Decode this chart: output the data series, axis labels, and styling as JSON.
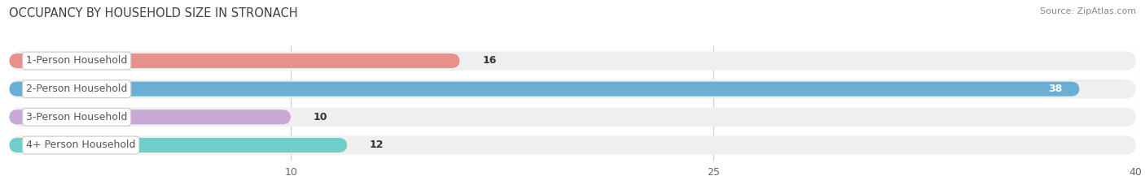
{
  "title": "OCCUPANCY BY HOUSEHOLD SIZE IN STRONACH",
  "source": "Source: ZipAtlas.com",
  "categories": [
    "1-Person Household",
    "2-Person Household",
    "3-Person Household",
    "4+ Person Household"
  ],
  "values": [
    16,
    38,
    10,
    12
  ],
  "bar_colors": [
    "#e8908a",
    "#6aaed6",
    "#c8a8d4",
    "#6dceca"
  ],
  "bar_bg_color": "#efefef",
  "label_text_color": "#555555",
  "value_color_outside": "#333333",
  "value_color_inside": "#ffffff",
  "xlim": [
    0,
    40
  ],
  "xticks": [
    10,
    25,
    40
  ],
  "title_fontsize": 10.5,
  "source_fontsize": 8,
  "bar_label_fontsize": 9,
  "category_fontsize": 9,
  "tick_fontsize": 9,
  "fig_width": 14.06,
  "fig_height": 2.33,
  "dpi": 100
}
